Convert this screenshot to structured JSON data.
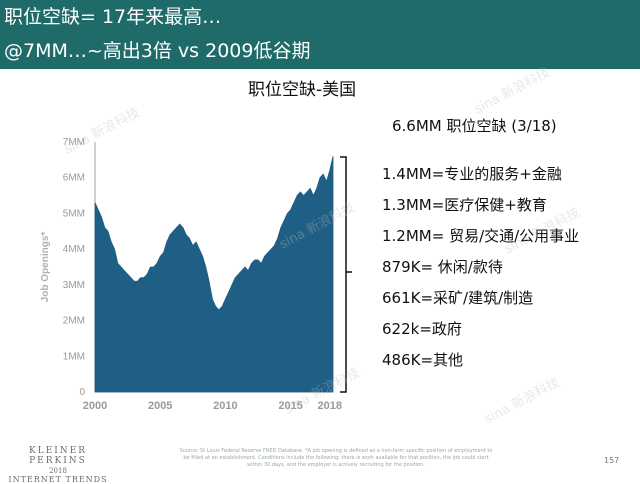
{
  "header": {
    "title": "职位空缺= 17年来最高…",
    "subtitle": "@7MM…~高出3倍 vs 2009低谷期"
  },
  "summary": "6.6MM 职位空缺 (3/18)",
  "breakdown": [
    "1.4MM=专业的服务+金融",
    "1.3MM=医疗保健+教育",
    "1.2MM= 贸易/交通/公用事业",
    "879K= 休闲/款待",
    "661K=采矿/建筑/制造",
    "622k=政府",
    "486K=其他"
  ],
  "footer": {
    "brand": "KLEINER PERKINS",
    "year": "2018",
    "sub": "INTERNET TRENDS",
    "source": "Source: St Louis Federal Reserve FRED Database. *A job opening is defined as a non-farm specific position of employment to be filled at an establishment. Conditions include the following: there is work available for that position, the job could start within 30 days, and the employer is actively recruiting for the position.",
    "page": "157"
  },
  "watermark": "sina 新浪科技",
  "colors": {
    "header": "#1e6b6a",
    "area": "#1f5e85",
    "axis": "#a0a0a0"
  },
  "chart_data": {
    "type": "area",
    "title": "职位空缺-美国",
    "ylabel": "Job Openings*",
    "ylim": [
      0,
      7
    ],
    "xlim": [
      2000,
      2018.25
    ],
    "yticks": [
      {
        "value": 0,
        "label": "0"
      },
      {
        "value": 1,
        "label": "1MM"
      },
      {
        "value": 2,
        "label": "2MM"
      },
      {
        "value": 3,
        "label": "3MM"
      },
      {
        "value": 4,
        "label": "4MM"
      },
      {
        "value": 5,
        "label": "5MM"
      },
      {
        "value": 6,
        "label": "6MM"
      },
      {
        "value": 7,
        "label": "7MM"
      }
    ],
    "xticks": [
      {
        "value": 2000,
        "label": "2000"
      },
      {
        "value": 2005,
        "label": "2005"
      },
      {
        "value": 2010,
        "label": "2010"
      },
      {
        "value": 2015,
        "label": "2015"
      },
      {
        "value": 2018,
        "label": "2018"
      }
    ],
    "x": [
      2000.0,
      2000.25,
      2000.5,
      2000.75,
      2001.0,
      2001.25,
      2001.5,
      2001.75,
      2002.0,
      2002.25,
      2002.5,
      2002.75,
      2003.0,
      2003.25,
      2003.5,
      2003.75,
      2004.0,
      2004.25,
      2004.5,
      2004.75,
      2005.0,
      2005.25,
      2005.5,
      2005.75,
      2006.0,
      2006.25,
      2006.5,
      2006.75,
      2007.0,
      2007.25,
      2007.5,
      2007.75,
      2008.0,
      2008.25,
      2008.5,
      2008.75,
      2009.0,
      2009.25,
      2009.5,
      2009.75,
      2010.0,
      2010.25,
      2010.5,
      2010.75,
      2011.0,
      2011.25,
      2011.5,
      2011.75,
      2012.0,
      2012.25,
      2012.5,
      2012.75,
      2013.0,
      2013.25,
      2013.5,
      2013.75,
      2014.0,
      2014.25,
      2014.5,
      2014.75,
      2015.0,
      2015.25,
      2015.5,
      2015.75,
      2016.0,
      2016.25,
      2016.5,
      2016.75,
      2017.0,
      2017.25,
      2017.5,
      2017.75,
      2018.0,
      2018.25
    ],
    "values": [
      5.3,
      5.1,
      4.9,
      4.6,
      4.5,
      4.2,
      4.0,
      3.6,
      3.5,
      3.4,
      3.3,
      3.2,
      3.1,
      3.1,
      3.2,
      3.2,
      3.3,
      3.5,
      3.5,
      3.6,
      3.8,
      3.9,
      4.2,
      4.4,
      4.5,
      4.6,
      4.7,
      4.6,
      4.4,
      4.3,
      4.1,
      4.2,
      4.0,
      3.8,
      3.5,
      3.1,
      2.6,
      2.4,
      2.3,
      2.4,
      2.6,
      2.8,
      3.0,
      3.2,
      3.3,
      3.4,
      3.5,
      3.4,
      3.6,
      3.7,
      3.7,
      3.6,
      3.8,
      3.9,
      4.0,
      4.1,
      4.3,
      4.6,
      4.8,
      5.0,
      5.1,
      5.3,
      5.5,
      5.6,
      5.5,
      5.6,
      5.7,
      5.5,
      5.7,
      6.0,
      6.1,
      5.9,
      6.2,
      6.6
    ]
  }
}
